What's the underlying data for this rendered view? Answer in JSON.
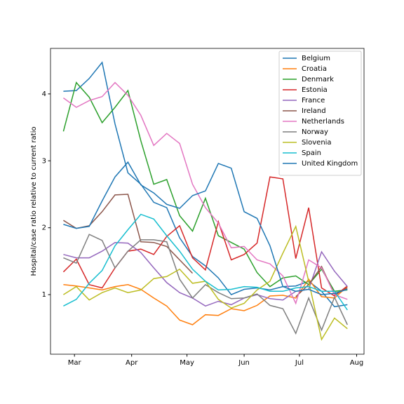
{
  "chart_data": {
    "type": "line",
    "ylabel": "Hospital/case ratio relative to current ratio",
    "x": [
      54,
      61,
      68,
      75,
      82,
      89,
      96,
      103,
      110,
      117,
      124,
      131,
      138,
      145,
      152,
      159,
      166,
      173,
      180,
      187,
      194,
      201,
      208
    ],
    "xlim": [
      47,
      217
    ],
    "xticks": [
      {
        "value": 60,
        "label": "Mar"
      },
      {
        "value": 91,
        "label": "Apr"
      },
      {
        "value": 121,
        "label": "May"
      },
      {
        "value": 152,
        "label": "Jun"
      },
      {
        "value": 182,
        "label": "Jul"
      },
      {
        "value": 213,
        "label": "Aug"
      }
    ],
    "ylim": [
      0.11,
      4.68
    ],
    "yticks": [
      1,
      2,
      3,
      4
    ],
    "legend": "upper right",
    "series": [
      {
        "name": "Belgium",
        "color": "#1f77b4",
        "values": [
          4.04,
          4.05,
          4.23,
          4.47,
          3.55,
          2.82,
          2.65,
          2.38,
          2.3,
          1.85,
          1.57,
          1.43,
          1.25,
          1.0,
          1.08,
          1.1,
          1.07,
          1.12,
          1.13,
          1.2,
          1.05,
          0.82,
          0.85
        ]
      },
      {
        "name": "Croatia",
        "color": "#ff7f0e",
        "values": [
          1.15,
          1.13,
          1.1,
          1.07,
          1.12,
          1.15,
          1.08,
          0.95,
          0.83,
          0.62,
          0.55,
          0.7,
          0.69,
          0.79,
          0.76,
          0.84,
          0.98,
          0.99,
          0.95,
          1.23,
          0.97,
          0.95,
          1.12
        ]
      },
      {
        "name": "Denmark",
        "color": "#2ca02c",
        "values": [
          3.44,
          4.17,
          3.95,
          3.57,
          3.8,
          4.05,
          3.3,
          2.65,
          2.72,
          2.18,
          1.95,
          2.44,
          1.88,
          1.78,
          1.68,
          1.33,
          1.12,
          1.25,
          1.28,
          1.15,
          1.38,
          1.05,
          1.07
        ]
      },
      {
        "name": "Estonia",
        "color": "#d62728",
        "values": [
          1.34,
          1.53,
          1.15,
          1.1,
          1.4,
          1.65,
          1.68,
          1.6,
          1.87,
          2.03,
          1.55,
          1.37,
          2.09,
          1.52,
          1.6,
          1.77,
          2.76,
          2.73,
          1.54,
          2.3,
          1.1,
          0.98,
          1.13
        ]
      },
      {
        "name": "France",
        "color": "#9467bd",
        "values": [
          1.6,
          1.55,
          1.55,
          1.65,
          1.78,
          1.77,
          1.63,
          1.4,
          1.18,
          1.03,
          0.95,
          0.83,
          0.9,
          0.85,
          0.95,
          1.0,
          0.94,
          0.92,
          1.05,
          1.08,
          1.64,
          1.35,
          1.12
        ]
      },
      {
        "name": "Ireland",
        "color": "#8c564b",
        "values": [
          2.11,
          1.99,
          2.03,
          2.24,
          2.49,
          2.5,
          1.79,
          1.78,
          1.72,
          1.52,
          1.32,
          null,
          null,
          null,
          null,
          null,
          null,
          null,
          0.97,
          1.15,
          1.42,
          1.0,
          1.1
        ]
      },
      {
        "name": "Netherlands",
        "color": "#e377c2",
        "values": [
          3.94,
          3.8,
          3.9,
          3.96,
          4.17,
          3.98,
          3.68,
          3.23,
          3.41,
          3.26,
          2.65,
          2.3,
          2.07,
          1.7,
          1.72,
          1.52,
          1.46,
          1.28,
          0.87,
          1.52,
          1.4,
          1.0,
          0.93
        ]
      },
      {
        "name": "Norway",
        "color": "#7f7f7f",
        "values": [
          1.55,
          1.47,
          1.9,
          1.81,
          1.4,
          1.65,
          1.82,
          1.82,
          1.79,
          1.23,
          0.95,
          1.15,
          1.03,
          0.94,
          0.95,
          1.01,
          0.84,
          0.79,
          0.42,
          0.95,
          0.47,
          0.96,
          0.55
        ]
      },
      {
        "name": "Slovenia",
        "color": "#bcbd22",
        "values": [
          1.0,
          1.12,
          0.92,
          1.03,
          1.1,
          1.03,
          1.07,
          1.24,
          1.27,
          1.38,
          1.17,
          1.2,
          0.93,
          0.8,
          0.87,
          1.07,
          1.2,
          1.62,
          2.02,
          1.2,
          0.33,
          0.65,
          0.49
        ]
      },
      {
        "name": "Spain",
        "color": "#17becf",
        "values": [
          0.83,
          0.93,
          1.17,
          1.36,
          1.73,
          1.97,
          2.2,
          2.13,
          1.88,
          1.65,
          1.38,
          1.2,
          1.07,
          1.08,
          1.12,
          1.11,
          1.05,
          1.05,
          1.1,
          1.12,
          1.05,
          1.05,
          0.77
        ]
      },
      {
        "name": "United Kingdom",
        "color": "#1f77b4",
        "values": [
          2.05,
          1.99,
          2.02,
          2.4,
          2.76,
          2.98,
          2.64,
          2.52,
          2.35,
          2.29,
          2.48,
          2.55,
          2.96,
          2.89,
          2.24,
          2.14,
          1.73,
          1.12,
          1.05,
          1.08,
          1.0,
          1.02,
          1.08
        ]
      }
    ]
  }
}
